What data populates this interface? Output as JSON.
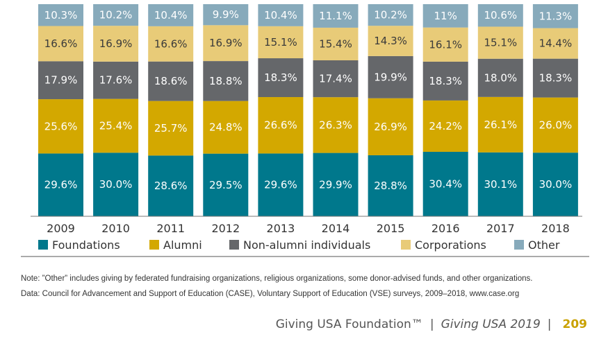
{
  "chart_data": {
    "type": "bar",
    "stacked": true,
    "categories": [
      "2009",
      "2010",
      "2011",
      "2012",
      "2013",
      "2014",
      "2015",
      "2016",
      "2017",
      "2018"
    ],
    "series": [
      {
        "name": "Foundations",
        "color": "#00788c",
        "values": [
          29.6,
          30.0,
          28.6,
          29.5,
          29.6,
          29.9,
          28.8,
          30.4,
          30.1,
          30.0
        ],
        "labels": [
          "29.6%",
          "30.0%",
          "28.6%",
          "29.5%",
          "29.6%",
          "29.9%",
          "28.8%",
          "30.4%",
          "30.1%",
          "30.0%"
        ]
      },
      {
        "name": "Alumni",
        "color": "#d3a800",
        "values": [
          25.6,
          25.4,
          25.7,
          24.8,
          26.6,
          26.3,
          26.9,
          24.2,
          26.1,
          26.0
        ],
        "labels": [
          "25.6%",
          "25.4%",
          "25.7%",
          "24.8%",
          "26.6%",
          "26.3%",
          "26.9%",
          "24.2%",
          "26.1%",
          "26.0%"
        ]
      },
      {
        "name": "Non-alumni individuals",
        "color": "#65676a",
        "values": [
          17.9,
          17.6,
          18.6,
          18.8,
          18.3,
          17.4,
          19.9,
          18.3,
          18.0,
          18.3
        ],
        "labels": [
          "17.9%",
          "17.6%",
          "18.6%",
          "18.8%",
          "18.3%",
          "17.4%",
          "19.9%",
          "18.3%",
          "18.0%",
          "18.3%"
        ]
      },
      {
        "name": "Corporations",
        "color": "#e8cb78",
        "values": [
          16.6,
          16.9,
          16.6,
          16.9,
          15.1,
          15.4,
          14.3,
          16.1,
          15.1,
          14.4
        ],
        "labels": [
          "16.6%",
          "16.9%",
          "16.6%",
          "16.9%",
          "15.1%",
          "15.4%",
          "14.3%",
          "16.1%",
          "15.1%",
          "14.4%"
        ]
      },
      {
        "name": "Other",
        "color": "#87aabb",
        "values": [
          10.3,
          10.2,
          10.4,
          9.9,
          10.4,
          11.1,
          10.2,
          11,
          10.6,
          11.3
        ],
        "labels": [
          "10.3%",
          "10.2%",
          "10.4%",
          "9.9%",
          "10.4%",
          "11.1%",
          "10.2%",
          "11%",
          "10.6%",
          "11.3%"
        ]
      }
    ],
    "ylim": [
      0,
      100
    ],
    "legend": "bottom"
  },
  "notes": {
    "note1": "Note: ”Other” includes giving by federated fundraising organizations, religious organizations, some donor-advised funds, and other organizations.",
    "note2": "Data: Council for Advancement and Support of Education (CASE), Voluntary Support of Education (VSE) surveys, 2009–2018, www.case.org"
  },
  "footer": {
    "org": "Giving USA Foundation™",
    "separator1": "|",
    "publication": "Giving USA 2019",
    "separator2": "|",
    "page_number": "209"
  }
}
